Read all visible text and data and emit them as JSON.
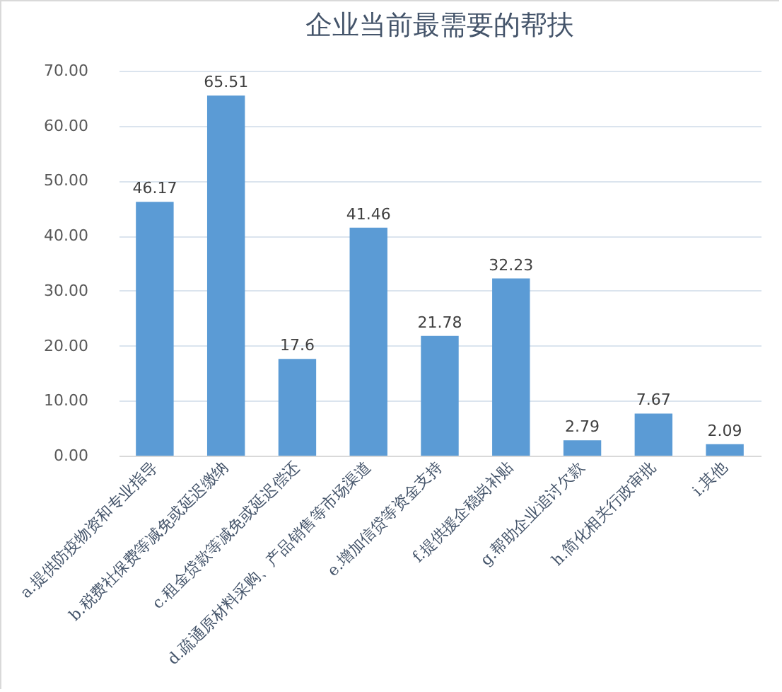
{
  "chart_data": {
    "type": "bar",
    "title": "企业当前最需要的帮扶",
    "categories": [
      "a.提供防疫物资和专业指导",
      "b.税费社保费等减免或延迟缴纳",
      "c.租金贷款等减免或延迟偿还",
      "d.疏通原材料采购、产品销售等市场渠道",
      "e.增加信贷等资金支持",
      "f.提供援企稳岗补贴",
      "g.帮助企业追讨欠款",
      "h.简化相关行政审批",
      "i.其他"
    ],
    "values": [
      46.17,
      65.51,
      17.6,
      41.46,
      21.78,
      32.23,
      2.79,
      7.67,
      2.09
    ],
    "color": "#5b9bd5",
    "ylim": [
      0,
      70
    ],
    "yticks": [
      {
        "value": 0,
        "label": "0.00"
      },
      {
        "value": 10,
        "label": "10.00"
      },
      {
        "value": 20,
        "label": "20.00"
      },
      {
        "value": 30,
        "label": "30.00"
      },
      {
        "value": 40,
        "label": "40.00"
      },
      {
        "value": 50,
        "label": "50.00"
      },
      {
        "value": 60,
        "label": "60.00"
      },
      {
        "value": 70,
        "label": "70.00"
      }
    ],
    "grid": "y",
    "data_labels": true
  }
}
